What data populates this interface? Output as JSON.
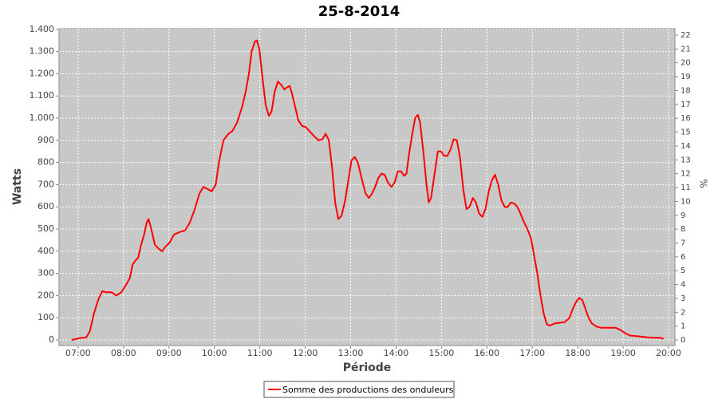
{
  "chart_data": {
    "type": "line",
    "title": "25-8-2014",
    "x_label": "Période",
    "y_label": "Watts",
    "y2_label": "%",
    "x": [
      6.86,
      7.04,
      7.18,
      7.26,
      7.35,
      7.44,
      7.53,
      7.63,
      7.74,
      7.84,
      7.95,
      8.06,
      8.14,
      8.2,
      8.27,
      8.32,
      8.39,
      8.46,
      8.51,
      8.55,
      8.6,
      8.69,
      8.78,
      8.85,
      8.92,
      9.02,
      9.11,
      9.22,
      9.36,
      9.46,
      9.57,
      9.67,
      9.76,
      9.85,
      9.94,
      10.03,
      10.1,
      10.2,
      10.31,
      10.39,
      10.5,
      10.61,
      10.69,
      10.76,
      10.82,
      10.89,
      10.94,
      10.99,
      11.06,
      11.13,
      11.2,
      11.26,
      11.33,
      11.4,
      11.47,
      11.54,
      11.61,
      11.66,
      11.71,
      11.78,
      11.85,
      11.93,
      12.01,
      12.1,
      12.19,
      12.29,
      12.38,
      12.45,
      12.52,
      12.59,
      12.66,
      12.73,
      12.8,
      12.88,
      12.95,
      13.02,
      13.09,
      13.16,
      13.24,
      13.33,
      13.4,
      13.47,
      13.54,
      13.61,
      13.68,
      13.75,
      13.82,
      13.9,
      13.97,
      14.04,
      14.11,
      14.18,
      14.23,
      14.28,
      14.35,
      14.42,
      14.48,
      14.53,
      14.6,
      14.67,
      14.72,
      14.77,
      14.85,
      14.92,
      14.99,
      15.06,
      15.13,
      15.2,
      15.27,
      15.34,
      15.41,
      15.48,
      15.55,
      15.62,
      15.69,
      15.76,
      15.83,
      15.9,
      15.97,
      16.04,
      16.11,
      16.18,
      16.25,
      16.32,
      16.39,
      16.46,
      16.53,
      16.6,
      16.67,
      16.74,
      16.82,
      16.89,
      16.97,
      17.04,
      17.11,
      17.18,
      17.25,
      17.32,
      17.39,
      17.5,
      17.61,
      17.71,
      17.82,
      17.89,
      17.96,
      18.03,
      18.1,
      18.17,
      18.24,
      18.31,
      18.42,
      18.52,
      18.63,
      18.73,
      18.84,
      18.94,
      19.05,
      19.15,
      19.26,
      19.4,
      19.54,
      19.68,
      19.82,
      19.89
    ],
    "series": [
      {
        "name": "Somme des productions des onduleurs",
        "color": "#ff0000",
        "values": [
          0,
          8,
          12,
          40,
          120,
          180,
          220,
          215,
          215,
          200,
          215,
          250,
          280,
          340,
          360,
          370,
          430,
          480,
          530,
          545,
          510,
          430,
          410,
          400,
          420,
          440,
          475,
          485,
          495,
          530,
          590,
          660,
          690,
          680,
          670,
          700,
          800,
          900,
          930,
          940,
          980,
          1050,
          1120,
          1200,
          1300,
          1345,
          1350,
          1310,
          1180,
          1060,
          1010,
          1030,
          1120,
          1165,
          1150,
          1130,
          1140,
          1145,
          1110,
          1050,
          990,
          965,
          960,
          940,
          920,
          900,
          905,
          930,
          900,
          780,
          620,
          545,
          560,
          630,
          720,
          810,
          825,
          800,
          730,
          660,
          640,
          660,
          690,
          730,
          750,
          745,
          710,
          690,
          710,
          760,
          760,
          740,
          750,
          830,
          920,
          1000,
          1015,
          980,
          850,
          700,
          620,
          640,
          750,
          850,
          850,
          830,
          830,
          860,
          905,
          900,
          820,
          680,
          590,
          600,
          640,
          620,
          570,
          555,
          590,
          670,
          720,
          745,
          700,
          630,
          600,
          600,
          620,
          615,
          600,
          570,
          530,
          500,
          460,
          380,
          300,
          200,
          120,
          70,
          65,
          75,
          78,
          80,
          100,
          140,
          170,
          190,
          180,
          140,
          100,
          75,
          60,
          55,
          55,
          55,
          55,
          45,
          30,
          20,
          18,
          15,
          12,
          10,
          10,
          5
        ]
      }
    ],
    "xlim": [
      6.58,
      20.14
    ],
    "xticks": [
      {
        "value": 7,
        "label": "07:00"
      },
      {
        "value": 8,
        "label": "08:00"
      },
      {
        "value": 9,
        "label": "09:00"
      },
      {
        "value": 10,
        "label": "10:00"
      },
      {
        "value": 11,
        "label": "11:00"
      },
      {
        "value": 12,
        "label": "12:00"
      },
      {
        "value": 13,
        "label": "13:00"
      },
      {
        "value": 14,
        "label": "14:00"
      },
      {
        "value": 15,
        "label": "15:00"
      },
      {
        "value": 16,
        "label": "16:00"
      },
      {
        "value": 17,
        "label": "17:00"
      },
      {
        "value": 18,
        "label": "18:00"
      },
      {
        "value": 19,
        "label": "19:00"
      },
      {
        "value": 20,
        "label": "20:00"
      }
    ],
    "ylim": [
      -25,
      1403
    ],
    "yticks": [
      0,
      100,
      200,
      300,
      400,
      500,
      600,
      700,
      800,
      900,
      {
        "value": 1000,
        "label": "1.000"
      },
      {
        "value": 1100,
        "label": "1.100"
      },
      {
        "value": 1200,
        "label": "1.200"
      },
      {
        "value": 1300,
        "label": "1.300"
      },
      {
        "value": 1400,
        "label": "1.400"
      }
    ],
    "y2lim": [
      -0.4,
      22.46
    ],
    "y2ticks": [
      0,
      1,
      2,
      3,
      4,
      5,
      6,
      7,
      8,
      9,
      10,
      11,
      12,
      13,
      14,
      15,
      16,
      17,
      18,
      19,
      20,
      21,
      22
    ],
    "grid": true,
    "legend": "bottom",
    "plot_color": "#c8c8c8"
  }
}
